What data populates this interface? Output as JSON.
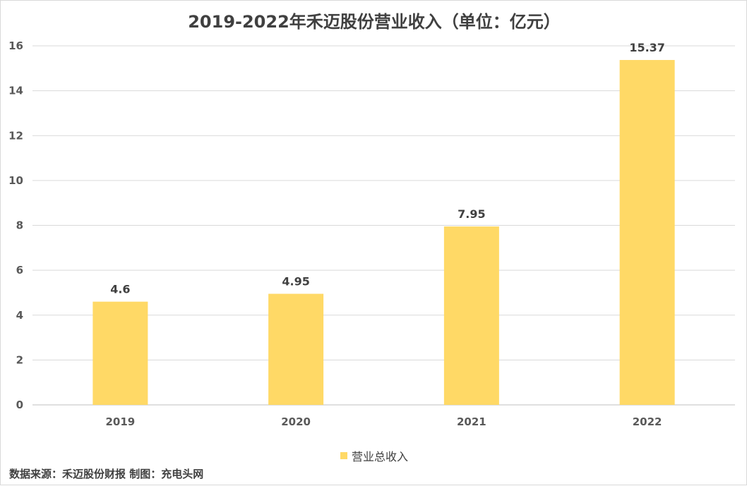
{
  "chart_data": {
    "type": "bar",
    "title": "2019-2022年禾迈股份营业收入（单位：亿元）",
    "categories": [
      "2019",
      "2020",
      "2021",
      "2022"
    ],
    "series": [
      {
        "name": "营业总收入",
        "values": [
          4.6,
          4.95,
          7.95,
          15.37
        ],
        "color": "#ffd966"
      }
    ],
    "data_labels": [
      "4.6",
      "4.95",
      "7.95",
      "15.37"
    ],
    "ylim": [
      0,
      16
    ],
    "yticks": [
      0,
      2,
      4,
      6,
      8,
      10,
      12,
      14,
      16
    ],
    "grid": true,
    "legend_position": "bottom",
    "source_note": "数据来源：禾迈股份财报  制图：充电头网"
  }
}
